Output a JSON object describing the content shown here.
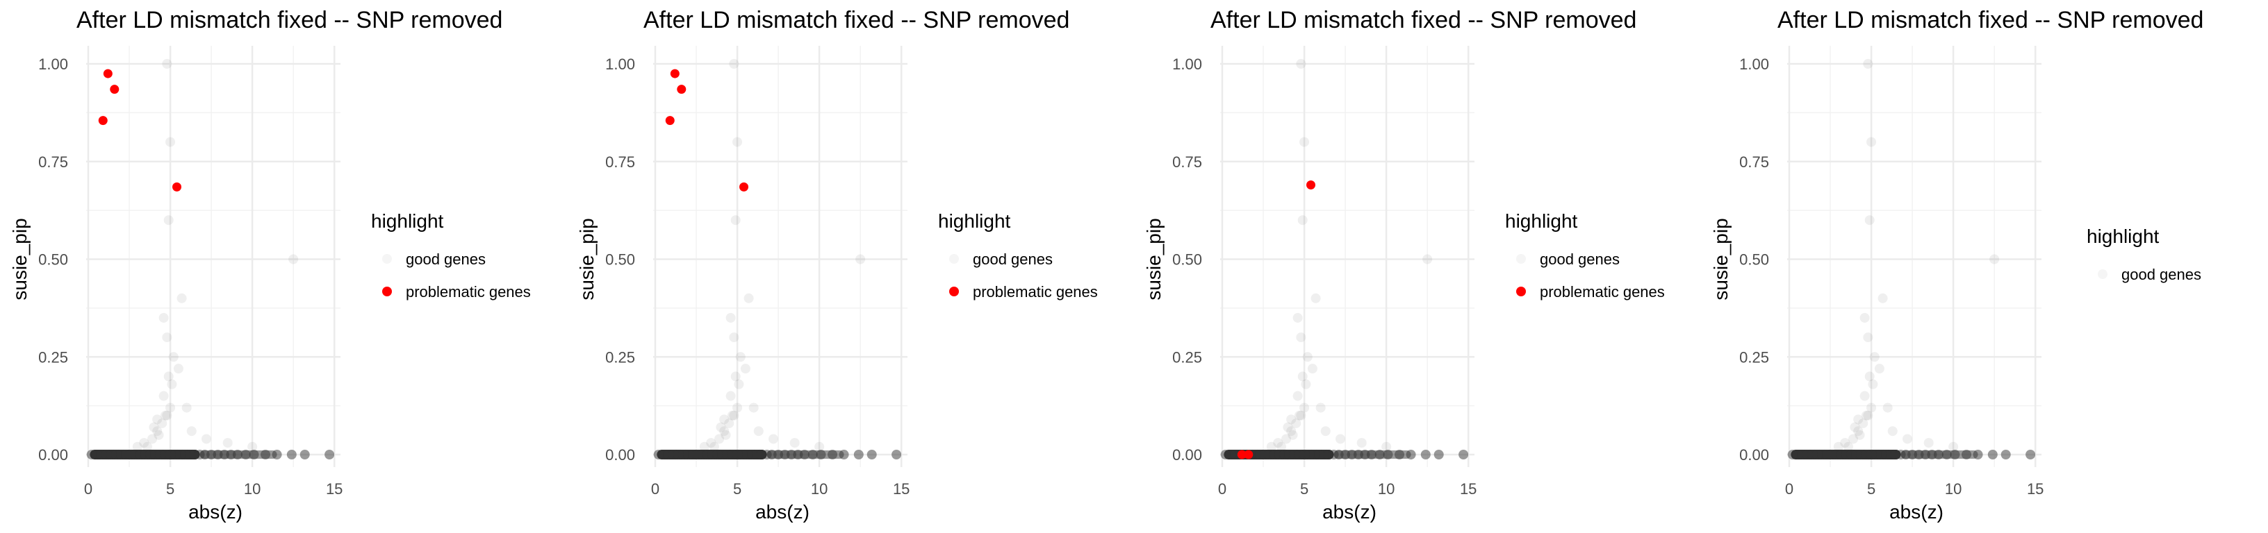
{
  "chart_data": [
    {
      "type": "scatter",
      "title": "After LD mismatch fixed -- SNP removed",
      "xlabel": "abs(z)",
      "ylabel": "susie_pip",
      "xlim": [
        0,
        15.5
      ],
      "ylim": [
        0,
        1
      ],
      "xticks": [
        0,
        5,
        10,
        15
      ],
      "xtick_labels": [
        "0",
        "5",
        "10",
        "15"
      ],
      "yticks": [
        0,
        0.25,
        0.5,
        0.75,
        1.0
      ],
      "ytick_labels": [
        "0.00",
        "0.25",
        "0.50",
        "0.75",
        "1.00"
      ],
      "grid": true,
      "legend": {
        "title": "highlight",
        "placement": "right",
        "entries": [
          "good genes",
          "problematic genes"
        ]
      },
      "series": [
        {
          "name": "good genes",
          "color": "#333333",
          "alpha": 0.04,
          "x": [
            0.2,
            0.5,
            0.8,
            1.1,
            1.4,
            1.7,
            2.0,
            2.3,
            2.6,
            2.9,
            3.2,
            3.5,
            3.8,
            4.1,
            4.4,
            4.7,
            5.0,
            5.3,
            5.6,
            5.9,
            6.2,
            6.5,
            6.8,
            7.1,
            7.5,
            7.9,
            8.3,
            8.7,
            9.1,
            9.6,
            10.1,
            10.8,
            11.5,
            12.4,
            13.2,
            14.7,
            3.6,
            3.9,
            4.2,
            4.5,
            4.8,
            5.0,
            4.6,
            4.9,
            5.2,
            4.3,
            4.7,
            5.1,
            3.4,
            4.0,
            4.8,
            5.5,
            6.0,
            4.2,
            4.6,
            3.0,
            5.7,
            6.3,
            7.2,
            8.5,
            10.0,
            12.5,
            4.9,
            5.0,
            4.8
          ],
          "y": [
            0.0,
            0.0,
            0.0,
            0.0,
            0.0,
            0.0,
            0.0,
            0.0,
            0.0,
            0.0,
            0.0,
            0.0,
            0.0,
            0.0,
            0.0,
            0.0,
            0.0,
            0.0,
            0.0,
            0.0,
            0.0,
            0.0,
            0.0,
            0.0,
            0.0,
            0.0,
            0.0,
            0.0,
            0.0,
            0.0,
            0.0,
            0.0,
            0.0,
            0.0,
            0.0,
            0.0,
            0.02,
            0.04,
            0.06,
            0.08,
            0.1,
            0.12,
            0.15,
            0.2,
            0.25,
            0.05,
            0.1,
            0.18,
            0.03,
            0.07,
            0.3,
            0.22,
            0.12,
            0.09,
            0.35,
            0.02,
            0.4,
            0.06,
            0.04,
            0.03,
            0.02,
            0.5,
            0.6,
            0.8,
            1.0
          ]
        },
        {
          "name": "problematic genes",
          "color": "#ff0000",
          "x": [
            1.2,
            1.6,
            0.9,
            5.4
          ],
          "y": [
            0.975,
            0.935,
            0.855,
            0.685
          ]
        }
      ]
    },
    {
      "type": "scatter",
      "title": "After LD mismatch fixed -- SNP removed",
      "xlabel": "abs(z)",
      "ylabel": "susie_pip",
      "xlim": [
        0,
        15.5
      ],
      "ylim": [
        0,
        1
      ],
      "xticks": [
        0,
        5,
        10,
        15
      ],
      "xtick_labels": [
        "0",
        "5",
        "10",
        "15"
      ],
      "yticks": [
        0,
        0.25,
        0.5,
        0.75,
        1.0
      ],
      "ytick_labels": [
        "0.00",
        "0.25",
        "0.50",
        "0.75",
        "1.00"
      ],
      "grid": true,
      "legend": {
        "title": "highlight",
        "placement": "right",
        "entries": [
          "good genes",
          "problematic genes"
        ]
      },
      "series": [
        {
          "name": "good genes",
          "color": "#333333",
          "alpha": 0.04,
          "x": [
            0.2,
            0.5,
            0.8,
            1.1,
            1.4,
            1.7,
            2.0,
            2.3,
            2.6,
            2.9,
            3.2,
            3.5,
            3.8,
            4.1,
            4.4,
            4.7,
            5.0,
            5.3,
            5.6,
            5.9,
            6.2,
            6.5,
            6.8,
            7.1,
            7.5,
            7.9,
            8.3,
            8.7,
            9.1,
            9.6,
            10.1,
            10.8,
            11.5,
            12.4,
            13.2,
            14.7,
            3.6,
            3.9,
            4.2,
            4.5,
            4.8,
            5.0,
            4.6,
            4.9,
            5.2,
            4.3,
            4.7,
            5.1,
            3.4,
            4.0,
            4.8,
            5.5,
            6.0,
            4.2,
            4.6,
            3.0,
            5.7,
            6.3,
            7.2,
            8.5,
            10.0,
            12.5,
            4.9,
            5.0,
            4.8
          ],
          "y": [
            0.0,
            0.0,
            0.0,
            0.0,
            0.0,
            0.0,
            0.0,
            0.0,
            0.0,
            0.0,
            0.0,
            0.0,
            0.0,
            0.0,
            0.0,
            0.0,
            0.0,
            0.0,
            0.0,
            0.0,
            0.0,
            0.0,
            0.0,
            0.0,
            0.0,
            0.0,
            0.0,
            0.0,
            0.0,
            0.0,
            0.0,
            0.0,
            0.0,
            0.0,
            0.0,
            0.0,
            0.02,
            0.04,
            0.06,
            0.08,
            0.1,
            0.12,
            0.15,
            0.2,
            0.25,
            0.05,
            0.1,
            0.18,
            0.03,
            0.07,
            0.3,
            0.22,
            0.12,
            0.09,
            0.35,
            0.02,
            0.4,
            0.06,
            0.04,
            0.03,
            0.02,
            0.5,
            0.6,
            0.8,
            1.0
          ]
        },
        {
          "name": "problematic genes",
          "color": "#ff0000",
          "x": [
            1.2,
            1.6,
            0.9,
            5.4
          ],
          "y": [
            0.975,
            0.935,
            0.855,
            0.685
          ]
        }
      ]
    },
    {
      "type": "scatter",
      "title": "After LD mismatch fixed -- SNP removed",
      "xlabel": "abs(z)",
      "ylabel": "susie_pip",
      "xlim": [
        0,
        15.5
      ],
      "ylim": [
        0,
        1
      ],
      "xticks": [
        0,
        5,
        10,
        15
      ],
      "xtick_labels": [
        "0",
        "5",
        "10",
        "15"
      ],
      "yticks": [
        0,
        0.25,
        0.5,
        0.75,
        1.0
      ],
      "ytick_labels": [
        "0.00",
        "0.25",
        "0.50",
        "0.75",
        "1.00"
      ],
      "grid": true,
      "legend": {
        "title": "highlight",
        "placement": "right",
        "entries": [
          "good genes",
          "problematic genes"
        ]
      },
      "series": [
        {
          "name": "good genes",
          "color": "#333333",
          "alpha": 0.04,
          "x": [
            0.2,
            0.5,
            0.8,
            1.1,
            1.4,
            1.7,
            2.0,
            2.3,
            2.6,
            2.9,
            3.2,
            3.5,
            3.8,
            4.1,
            4.4,
            4.7,
            5.0,
            5.3,
            5.6,
            5.9,
            6.2,
            6.5,
            6.8,
            7.1,
            7.5,
            7.9,
            8.3,
            8.7,
            9.1,
            9.6,
            10.1,
            10.8,
            11.5,
            12.4,
            13.2,
            14.7,
            3.6,
            3.9,
            4.2,
            4.5,
            4.8,
            5.0,
            4.6,
            4.9,
            5.2,
            4.3,
            4.7,
            5.1,
            3.4,
            4.0,
            4.8,
            5.5,
            6.0,
            4.2,
            4.6,
            3.0,
            5.7,
            6.3,
            7.2,
            8.5,
            10.0,
            12.5,
            4.9,
            5.0,
            4.8
          ],
          "y": [
            0.0,
            0.0,
            0.0,
            0.0,
            0.0,
            0.0,
            0.0,
            0.0,
            0.0,
            0.0,
            0.0,
            0.0,
            0.0,
            0.0,
            0.0,
            0.0,
            0.0,
            0.0,
            0.0,
            0.0,
            0.0,
            0.0,
            0.0,
            0.0,
            0.0,
            0.0,
            0.0,
            0.0,
            0.0,
            0.0,
            0.0,
            0.0,
            0.0,
            0.0,
            0.0,
            0.0,
            0.02,
            0.04,
            0.06,
            0.08,
            0.1,
            0.12,
            0.15,
            0.2,
            0.25,
            0.05,
            0.1,
            0.18,
            0.03,
            0.07,
            0.3,
            0.22,
            0.12,
            0.09,
            0.35,
            0.02,
            0.4,
            0.06,
            0.04,
            0.03,
            0.02,
            0.5,
            0.6,
            0.8,
            1.0
          ]
        },
        {
          "name": "problematic genes",
          "color": "#ff0000",
          "x": [
            1.2,
            1.6,
            5.4
          ],
          "y": [
            0.0,
            0.0,
            0.69
          ]
        }
      ]
    },
    {
      "type": "scatter",
      "title": "After LD mismatch fixed -- SNP removed",
      "xlabel": "abs(z)",
      "ylabel": "susie_pip",
      "xlim": [
        0,
        15.5
      ],
      "ylim": [
        0,
        1
      ],
      "xticks": [
        0,
        5,
        10,
        15
      ],
      "xtick_labels": [
        "0",
        "5",
        "10",
        "15"
      ],
      "yticks": [
        0,
        0.25,
        0.5,
        0.75,
        1.0
      ],
      "ytick_labels": [
        "0.00",
        "0.25",
        "0.50",
        "0.75",
        "1.00"
      ],
      "grid": true,
      "legend": {
        "title": "highlight",
        "placement": "right",
        "entries": [
          "good genes"
        ]
      },
      "series": [
        {
          "name": "good genes",
          "color": "#333333",
          "alpha": 0.04,
          "x": [
            0.2,
            0.5,
            0.8,
            1.1,
            1.4,
            1.7,
            2.0,
            2.3,
            2.6,
            2.9,
            3.2,
            3.5,
            3.8,
            4.1,
            4.4,
            4.7,
            5.0,
            5.3,
            5.6,
            5.9,
            6.2,
            6.5,
            6.8,
            7.1,
            7.5,
            7.9,
            8.3,
            8.7,
            9.1,
            9.6,
            10.1,
            10.8,
            11.5,
            12.4,
            13.2,
            14.7,
            3.6,
            3.9,
            4.2,
            4.5,
            4.8,
            5.0,
            4.6,
            4.9,
            5.2,
            4.3,
            4.7,
            5.1,
            3.4,
            4.0,
            4.8,
            5.5,
            6.0,
            4.2,
            4.6,
            3.0,
            5.7,
            6.3,
            7.2,
            8.5,
            10.0,
            12.5,
            4.9,
            5.0,
            4.8
          ],
          "y": [
            0.0,
            0.0,
            0.0,
            0.0,
            0.0,
            0.0,
            0.0,
            0.0,
            0.0,
            0.0,
            0.0,
            0.0,
            0.0,
            0.0,
            0.0,
            0.0,
            0.0,
            0.0,
            0.0,
            0.0,
            0.0,
            0.0,
            0.0,
            0.0,
            0.0,
            0.0,
            0.0,
            0.0,
            0.0,
            0.0,
            0.0,
            0.0,
            0.0,
            0.0,
            0.0,
            0.0,
            0.02,
            0.04,
            0.06,
            0.08,
            0.1,
            0.12,
            0.15,
            0.2,
            0.25,
            0.05,
            0.1,
            0.18,
            0.03,
            0.07,
            0.3,
            0.22,
            0.12,
            0.09,
            0.35,
            0.02,
            0.4,
            0.06,
            0.04,
            0.03,
            0.02,
            0.5,
            0.6,
            0.8,
            1.0
          ]
        }
      ]
    }
  ]
}
